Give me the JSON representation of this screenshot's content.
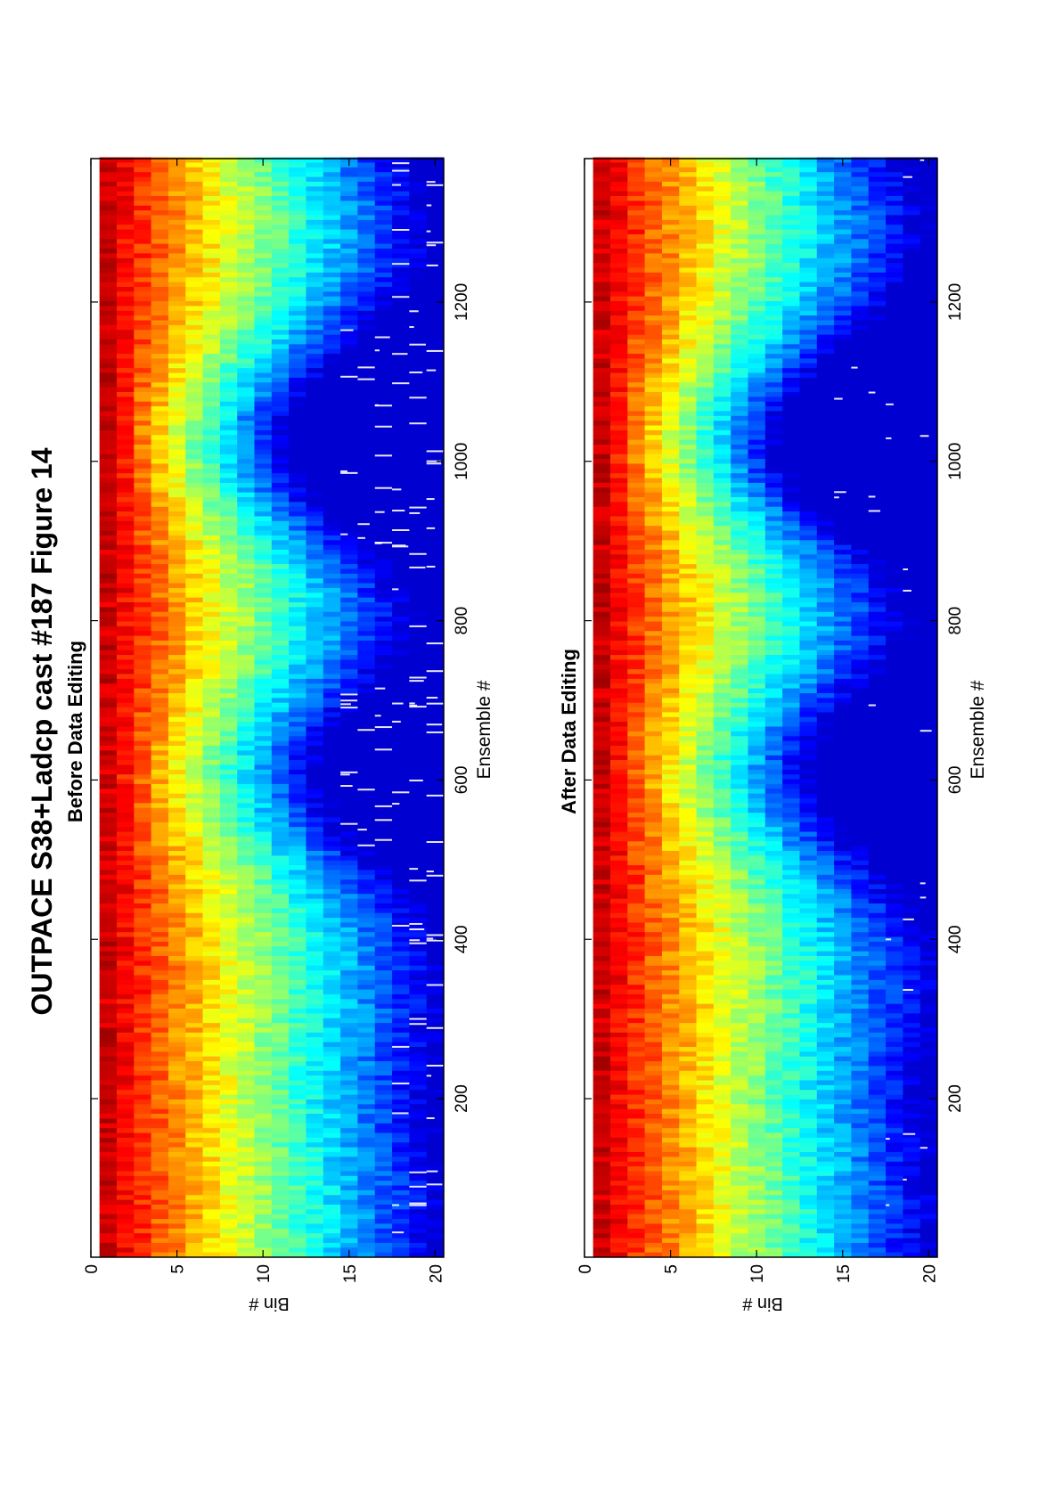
{
  "title": "OUTPACE S38+Ladcp cast #187  Figure 14",
  "chart_data": [
    {
      "type": "heatmap",
      "title": "Before Data Editing",
      "xlabel": "Ensemble #",
      "ylabel": "Bin #",
      "xlim": [
        1,
        1380
      ],
      "ylim": [
        0,
        20.5
      ],
      "y_reversed": true,
      "xticks": [
        200,
        400,
        600,
        800,
        1000,
        1200
      ],
      "yticks": [
        0,
        5,
        10,
        15,
        20
      ],
      "bins": 20,
      "colormap": "jet",
      "values_note_key": "intensity",
      "peak_columns": [
        30,
        380,
        800,
        1290
      ],
      "trough_columns": [
        620,
        1000
      ],
      "missing_sparse": false
    },
    {
      "type": "heatmap",
      "title": "After Data Editing",
      "xlabel": "Ensemble #",
      "ylabel": "Bin #",
      "xlim": [
        1,
        1380
      ],
      "ylim": [
        0,
        20.5
      ],
      "y_reversed": true,
      "xticks": [
        200,
        400,
        600,
        800,
        1000,
        1200
      ],
      "yticks": [
        0,
        5,
        10,
        15,
        20
      ],
      "bins": 20,
      "colormap": "jet",
      "values_note_key": "intensity",
      "peak_columns": [
        30,
        380,
        800,
        1290
      ],
      "trough_columns": [
        620,
        1000
      ],
      "missing_sparse": true
    }
  ]
}
